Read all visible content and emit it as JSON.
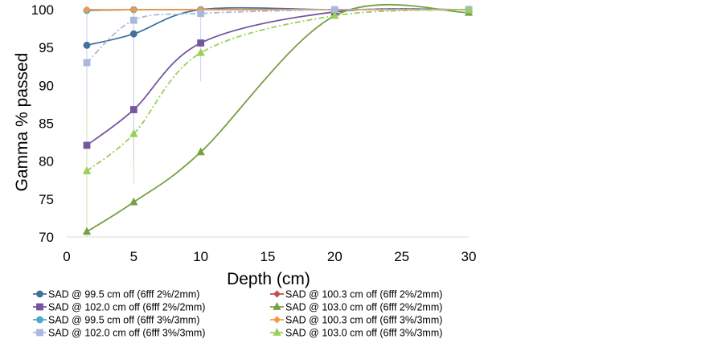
{
  "chart_data": {
    "type": "line",
    "title": "",
    "xlabel": "Depth (cm)",
    "ylabel": "Gamma % passed",
    "xlim": [
      0,
      30
    ],
    "ylim": [
      70,
      100
    ],
    "xticks": [
      0,
      5,
      10,
      15,
      20,
      25,
      30
    ],
    "yticks": [
      70,
      75,
      80,
      85,
      90,
      95,
      100
    ],
    "grid": false,
    "legend_position": "bottom",
    "x": [
      1.5,
      5,
      10,
      20,
      30
    ],
    "series": [
      {
        "name": "SAD @ 99.5 cm off (6fff 2%/2mm)",
        "values": [
          95.3,
          96.8,
          100,
          100,
          100
        ],
        "color": "#41719c",
        "marker": "circle",
        "dash": "solid"
      },
      {
        "name": "SAD @ 100.3 cm off (6fff 2%/2mm)",
        "values": [
          99.9,
          100,
          100,
          100,
          100
        ],
        "color": "#c0504d",
        "marker": "diamond",
        "dash": "solid"
      },
      {
        "name": "SAD @ 102.0 cm off (6fff 2%/2mm)",
        "values": [
          82.1,
          86.8,
          95.6,
          99.7,
          100
        ],
        "color": "#7456a0",
        "marker": "square",
        "dash": "solid"
      },
      {
        "name": "SAD @ 103.0 cm off (6fff 2%/2mm)",
        "values": [
          70.7,
          74.6,
          81.2,
          99.2,
          99.6
        ],
        "color": "#77a043",
        "marker": "triangle",
        "dash": "solid"
      },
      {
        "name": "SAD @ 99.5 cm off (6fff 3%/3mm)",
        "values": [
          99.9,
          100,
          100,
          100,
          100
        ],
        "color": "#4bacc6",
        "marker": "circle",
        "dash": "solid"
      },
      {
        "name": "SAD @ 100.3 cm off (6fff 3%/3mm)",
        "values": [
          100,
          100,
          100,
          100,
          100
        ],
        "color": "#f79646",
        "marker": "diamond",
        "dash": "solid"
      },
      {
        "name": "SAD @ 102.0 cm off (6fff 3%/3mm)",
        "values": [
          93.0,
          98.6,
          99.5,
          100,
          100
        ],
        "color": "#a9b8dc",
        "marker": "square",
        "dash": "dashdot"
      },
      {
        "name": "SAD @ 103.0 cm off (6fff 3%/3mm)",
        "values": [
          78.7,
          83.6,
          94.3,
          99.2,
          100
        ],
        "color": "#9bcf5a",
        "marker": "triangle",
        "dash": "dashdot"
      }
    ],
    "error_bars": [
      {
        "x": 1.5,
        "low": 70.0,
        "high": 100,
        "color": "#cfe3b0"
      },
      {
        "x": 1.5,
        "low": 86.8,
        "high": 100,
        "color": "#c9d2ea"
      },
      {
        "x": 5,
        "low": 77.0,
        "high": 100,
        "color": "#cfe3b0"
      },
      {
        "x": 5,
        "low": 80.0,
        "high": 100,
        "color": "#c9d2ea"
      },
      {
        "x": 10,
        "low": 90.5,
        "high": 100,
        "color": "#c9d2ea"
      }
    ]
  }
}
